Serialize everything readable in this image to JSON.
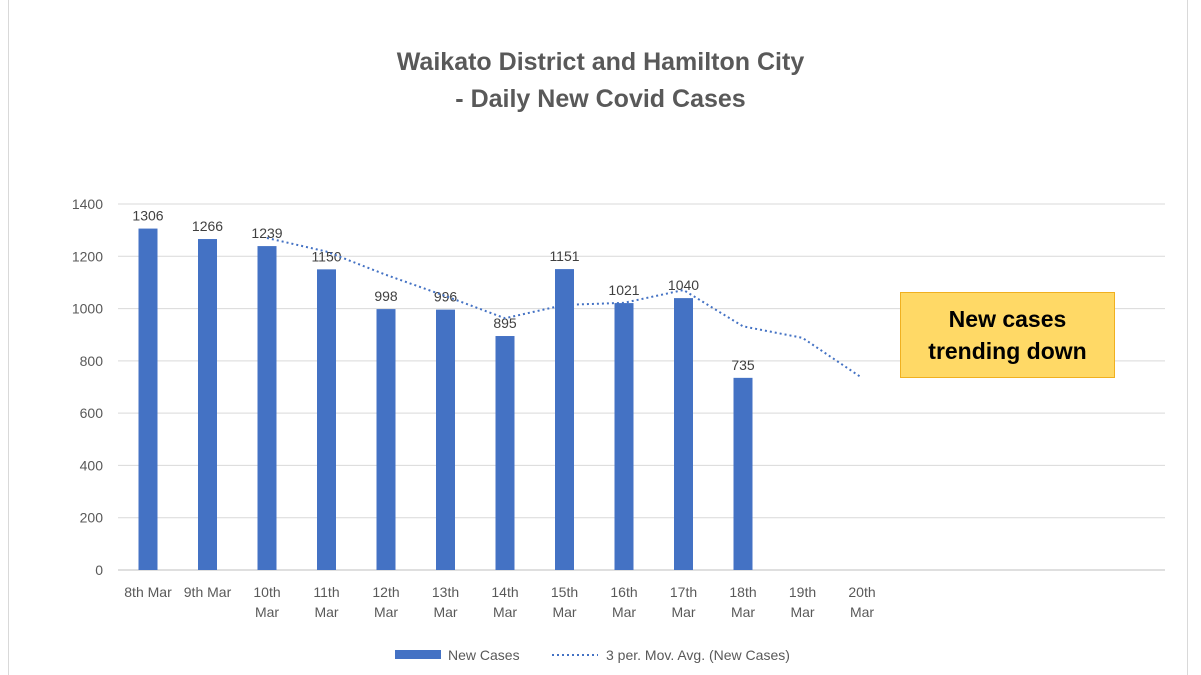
{
  "chart_data": {
    "type": "bar",
    "title_line1": "Waikato District and Hamilton City",
    "title_line2": "- Daily New Covid Cases",
    "categories": [
      [
        "8th Mar"
      ],
      [
        "9th Mar"
      ],
      [
        "10th",
        "Mar"
      ],
      [
        "11th",
        "Mar"
      ],
      [
        "12th",
        "Mar"
      ],
      [
        "13th",
        "Mar"
      ],
      [
        "14th",
        "Mar"
      ],
      [
        "15th",
        "Mar"
      ],
      [
        "16th",
        "Mar"
      ],
      [
        "17th",
        "Mar"
      ],
      [
        "18th",
        "Mar"
      ],
      [
        "19th",
        "Mar"
      ],
      [
        "20th",
        "Mar"
      ]
    ],
    "series": [
      {
        "name": "New Cases",
        "kind": "bar",
        "color": "#4472c4",
        "values": [
          1306,
          1266,
          1239,
          1150,
          998,
          996,
          895,
          1151,
          1021,
          1040,
          735,
          null,
          null
        ]
      },
      {
        "name": "3 per. Mov. Avg. (New Cases)",
        "kind": "trendline",
        "style": "dotted",
        "color": "#4472c4",
        "values": [
          null,
          null,
          1270,
          1218,
          1129,
          1048,
          963,
          1014,
          1022,
          1071,
          932,
          888,
          735
        ]
      }
    ],
    "ylim": [
      0,
      1400
    ],
    "yticks": [
      0,
      200,
      400,
      600,
      800,
      1000,
      1200,
      1400
    ],
    "grid": true,
    "legend_position": "bottom",
    "annotation": {
      "line1": "New cases",
      "line2": "trending down",
      "fill": "#ffd966"
    }
  }
}
